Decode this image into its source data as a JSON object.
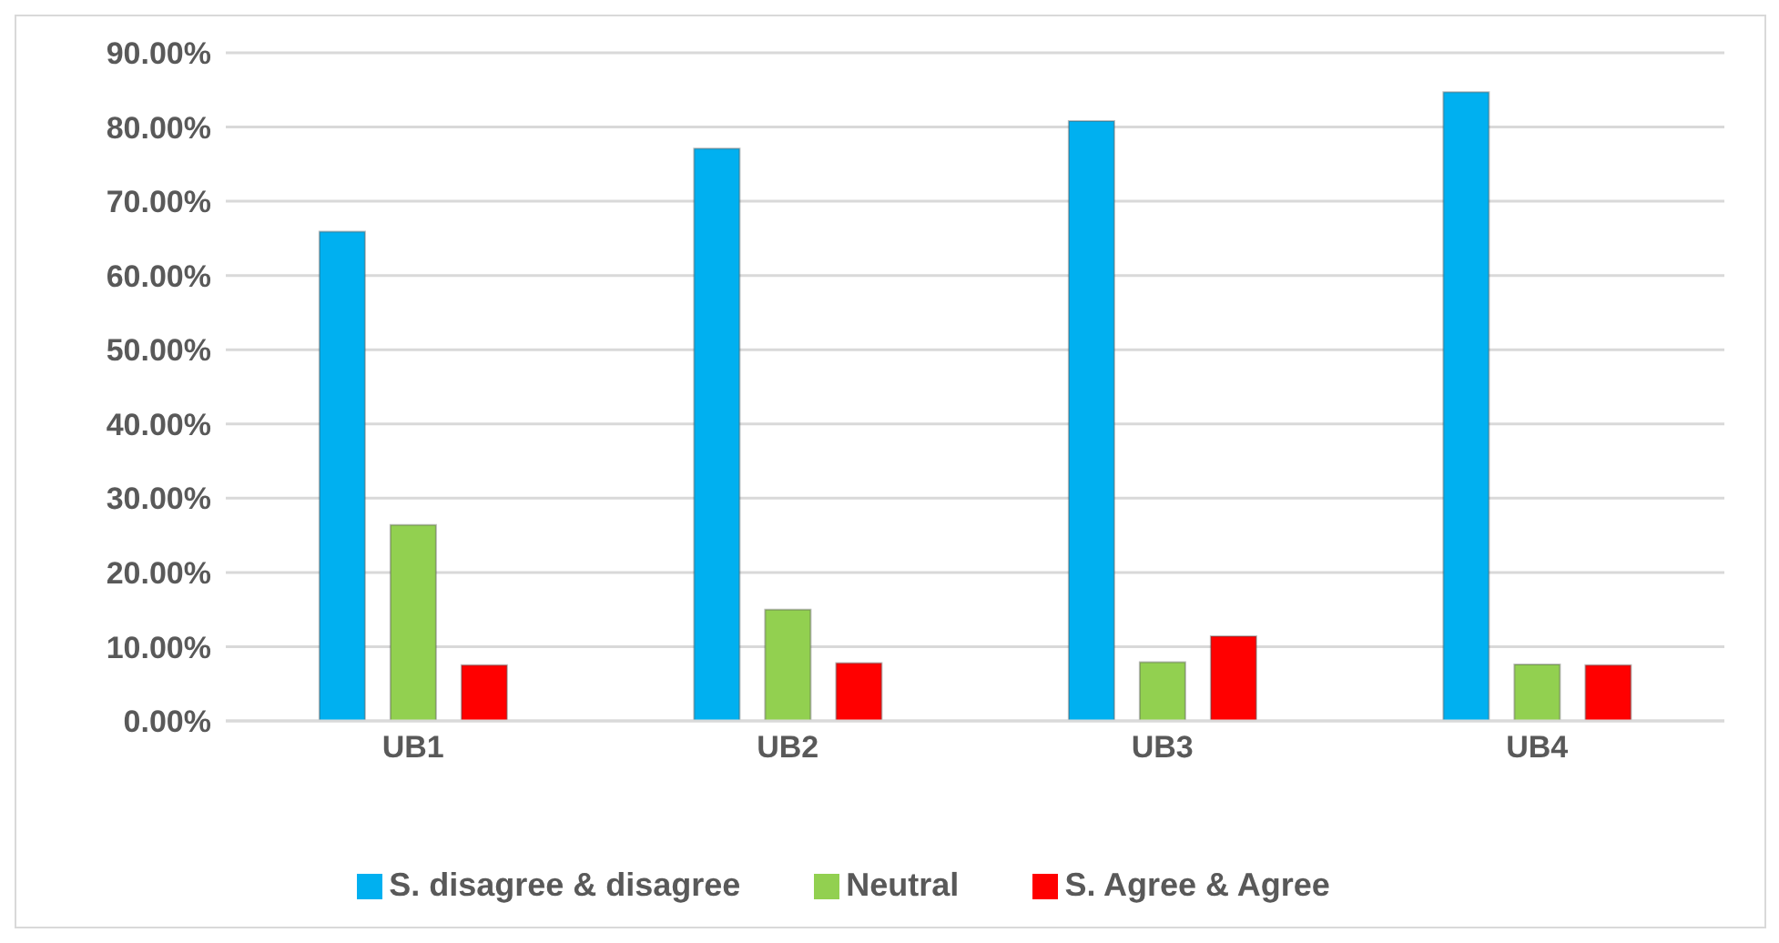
{
  "chart_data": {
    "type": "bar",
    "categories": [
      "UB1",
      "UB2",
      "UB3",
      "UB4"
    ],
    "series": [
      {
        "name": "S. disagree & disagree",
        "color": "#00b0f0",
        "values": [
          65.9,
          77.1,
          80.8,
          84.7
        ]
      },
      {
        "name": "Neutral",
        "color": "#92d050",
        "values": [
          26.4,
          15.0,
          7.9,
          7.6
        ]
      },
      {
        "name": "S. Agree & Agree",
        "color": "#ff0000",
        "values": [
          7.5,
          7.8,
          11.4,
          7.5
        ]
      }
    ],
    "ylim": [
      0,
      90
    ],
    "yticks": [
      {
        "value": 0,
        "label": "0.00%"
      },
      {
        "value": 10,
        "label": "10.00%"
      },
      {
        "value": 20,
        "label": "20.00%"
      },
      {
        "value": 30,
        "label": "30.00%"
      },
      {
        "value": 40,
        "label": "40.00%"
      },
      {
        "value": 50,
        "label": "50.00%"
      },
      {
        "value": 60,
        "label": "60.00%"
      },
      {
        "value": 70,
        "label": "70.00%"
      },
      {
        "value": 80,
        "label": "80.00%"
      },
      {
        "value": 90,
        "label": "90.00%"
      }
    ],
    "grid": "y",
    "legend": "bottom"
  }
}
